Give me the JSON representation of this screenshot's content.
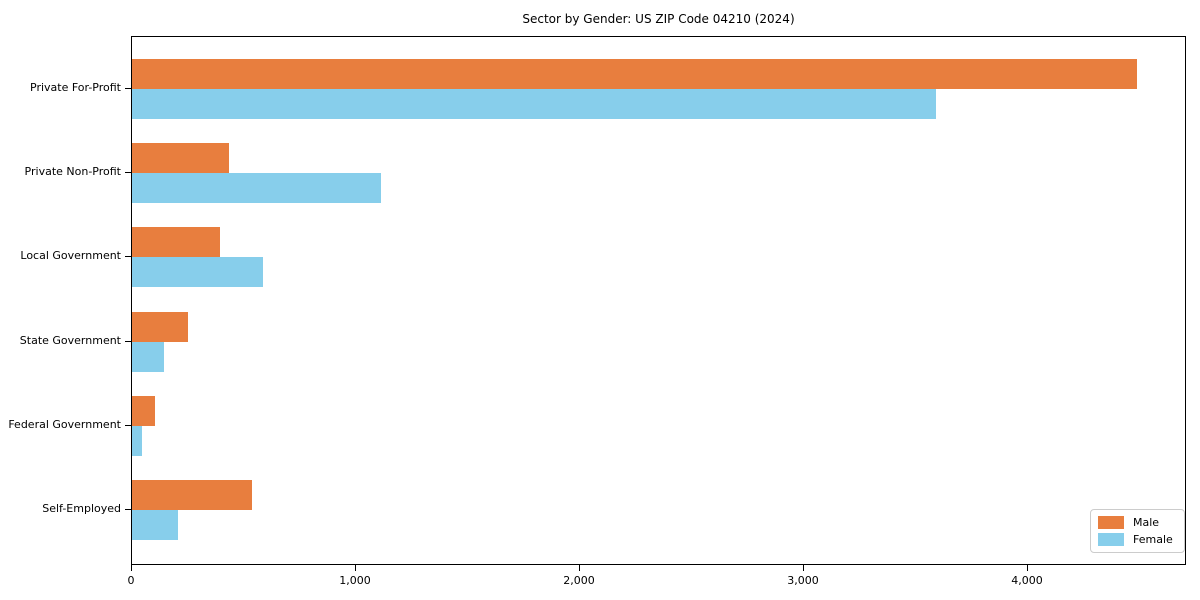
{
  "chart_data": {
    "type": "bar",
    "orientation": "horizontal",
    "title": "Sector by Gender: US ZIP Code 04210 (2024)",
    "categories": [
      "Private For-Profit",
      "Private Non-Profit",
      "Local Government",
      "State Government",
      "Federal Government",
      "Self-Employed"
    ],
    "series": [
      {
        "name": "Male",
        "color": "#e87e3e",
        "values": [
          4486,
          433,
          393,
          250,
          103,
          536
        ]
      },
      {
        "name": "Female",
        "color": "#87ceeb",
        "values": [
          3589,
          1112,
          585,
          143,
          45,
          205
        ]
      }
    ],
    "xlim": [
      0,
      4710
    ],
    "xticks": [
      0,
      1000,
      2000,
      3000,
      4000
    ],
    "xtick_labels": [
      "0",
      "1,000",
      "2,000",
      "3,000",
      "4,000"
    ],
    "xlabel": "",
    "ylabel": "",
    "grid": false,
    "legend_position": "lower right"
  }
}
